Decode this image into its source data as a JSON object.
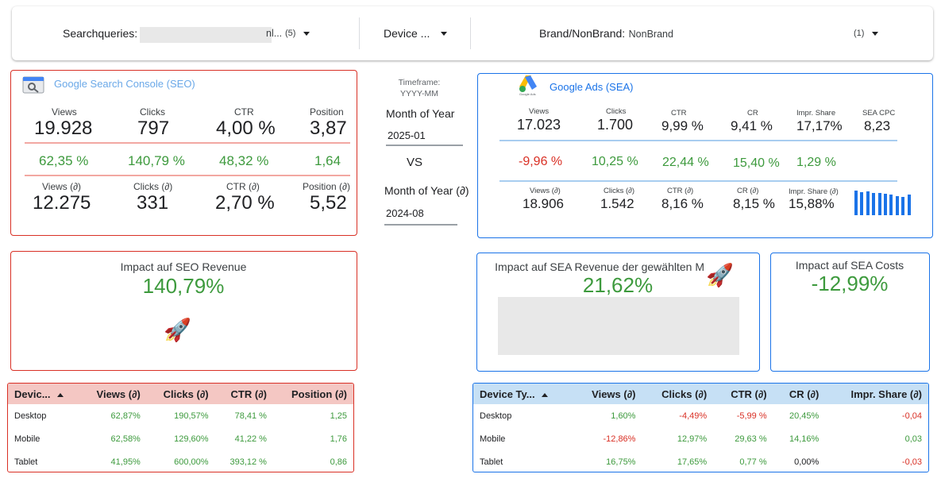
{
  "filters": {
    "searchqueries_label": "Searchqueries:",
    "searchqueries_value_tail": "nl...",
    "searchqueries_count": "(5)",
    "device_label": "Device ...",
    "brand_label": "Brand/NonBrand:",
    "brand_value": "NonBrand",
    "brand_count": "(1)"
  },
  "seo": {
    "title": "Google Search Console (SEO)",
    "current": [
      {
        "label": "Views",
        "value": "19.928"
      },
      {
        "label": "Clicks",
        "value": "797"
      },
      {
        "label": "CTR",
        "value": "4,00 %"
      },
      {
        "label": "Position",
        "value": "3,87"
      }
    ],
    "deltas": [
      "62,35 %",
      "140,79 %",
      "48,32 %",
      "1,64"
    ],
    "previous": [
      {
        "label": "Views (∂)",
        "value": "12.275"
      },
      {
        "label": "Clicks (∂)",
        "value": "331"
      },
      {
        "label": "CTR (∂)",
        "value": "2,70 %"
      },
      {
        "label": "Position (∂)",
        "value": "5,52"
      }
    ]
  },
  "timeframe": {
    "label_line1": "Timeframe:",
    "label_line2": "YYYY-MM",
    "month_label": "Month of Year",
    "month_value": "2025-01",
    "vs": "VS",
    "month_label_prev": "Month of Year (∂)",
    "month_value_prev": "2024-08"
  },
  "sea": {
    "title": "Google Ads (SEA)",
    "logo_caption": "Google Ads",
    "current": [
      {
        "label": "Views",
        "value": "17.023"
      },
      {
        "label": "Clicks",
        "value": "1.700"
      },
      {
        "label": "CTR",
        "value": "9,99 %"
      },
      {
        "label": "CR",
        "value": "9,41 %"
      },
      {
        "label": "Impr. Share",
        "value": "17,17%"
      },
      {
        "label": "SEA CPC",
        "value": "8,23"
      }
    ],
    "deltas": [
      {
        "value": "-9,96 %",
        "color": "#d93025"
      },
      {
        "value": "10,25 %",
        "color": "#3d9a3d"
      },
      {
        "value": "22,44 %",
        "color": "#3d9a3d"
      },
      {
        "value": "15,40 %",
        "color": "#3d9a3d"
      },
      {
        "value": "1,29 %",
        "color": "#3d9a3d"
      }
    ],
    "previous": [
      {
        "label": "Views (∂)",
        "value": "18.906"
      },
      {
        "label": "Clicks (∂)",
        "value": "1.542"
      },
      {
        "label": "CTR (∂)",
        "value": "8,16 %"
      },
      {
        "label": "CR (∂)",
        "value": "8,15 %"
      },
      {
        "label": "Impr. Share (∂)",
        "value": "15,88%"
      }
    ],
    "sparkbars": [
      0.95,
      0.88,
      0.9,
      0.84,
      0.86,
      0.82,
      0.8,
      0.72,
      0.7,
      0.78
    ]
  },
  "impact": {
    "seo_title": "Impact auf SEO Revenue",
    "seo_value": "140,79%",
    "sea_title": "Impact auf SEA Revenue der gewählten M",
    "sea_value": "21,62%",
    "costs_title": "Impact auf SEA Costs",
    "costs_value": "-12,99%"
  },
  "seo_table": {
    "headers": [
      "Devic...",
      "Views (∂)",
      "Clicks (∂)",
      "CTR (∂)",
      "Position (∂)"
    ],
    "rows": [
      {
        "cells": [
          "Desktop",
          "62,87%",
          "190,57%",
          "78,41 %",
          "1,25"
        ]
      },
      {
        "cells": [
          "Mobile",
          "62,58%",
          "129,60%",
          "41,22 %",
          "1,76"
        ]
      },
      {
        "cells": [
          "Tablet",
          "41,95%",
          "600,00%",
          "393,12 %",
          "0,86"
        ]
      }
    ]
  },
  "sea_table": {
    "headers": [
      "Device Ty...",
      "Views (∂)",
      "Clicks (∂)",
      "CTR (∂)",
      "CR (∂)",
      "Impr. Share (∂)"
    ],
    "rows": [
      {
        "cells": [
          "Desktop",
          "1,60%",
          "-4,49%",
          "-5,99 %",
          "20,45%",
          "-0,04"
        ],
        "colors": [
          "#202124",
          "#3d9a3d",
          "#d93025",
          "#d93025",
          "#3d9a3d",
          "#d93025"
        ]
      },
      {
        "cells": [
          "Mobile",
          "-12,86%",
          "12,97%",
          "29,63 %",
          "14,16%",
          "0,03"
        ],
        "colors": [
          "#202124",
          "#d93025",
          "#3d9a3d",
          "#3d9a3d",
          "#3d9a3d",
          "#3d9a3d"
        ]
      },
      {
        "cells": [
          "Tablet",
          "16,75%",
          "17,65%",
          "0,77 %",
          "0,00%",
          "-0,03"
        ],
        "colors": [
          "#202124",
          "#3d9a3d",
          "#3d9a3d",
          "#3d9a3d",
          "#202124",
          "#d93025"
        ]
      }
    ]
  },
  "colors": {
    "seo_accent": "#d93025",
    "sea_accent": "#1a73e8",
    "positive": "#3d9a3d",
    "negative": "#d93025"
  }
}
